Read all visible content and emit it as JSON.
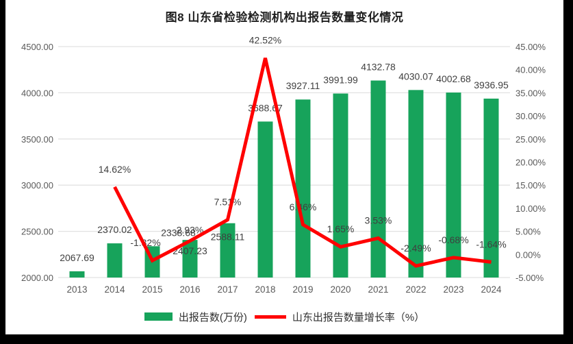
{
  "title": "图8  山东省检验检测机构出报告数量变化情况",
  "legend": {
    "bar_label": "出报告数(万份)",
    "line_label": "山东出报告数量增长率（%）"
  },
  "colors": {
    "bar": "#17A35B",
    "line": "#FF0000",
    "grid": "#E2E2E2",
    "axis_text": "#595959",
    "label_text": "#3F3F3F",
    "title_text": "#1F1F1F",
    "frame": "#000000",
    "page": "#FFFFFF"
  },
  "chart_data": {
    "type": "bar+line",
    "title": "图8  山东省检验检测机构出报告数量变化情况",
    "categories": [
      "2013",
      "2014",
      "2015",
      "2016",
      "2017",
      "2018",
      "2019",
      "2020",
      "2021",
      "2022",
      "2023",
      "2024"
    ],
    "series": [
      {
        "name": "出报告数(万份)",
        "type": "bar",
        "axis": "left",
        "color": "#17A35B",
        "values": [
          2067.69,
          2370.02,
          2338.68,
          2407.23,
          2588.11,
          3688.67,
          3927.11,
          3991.99,
          4132.78,
          4030.07,
          4002.68,
          3936.95
        ],
        "value_labels": [
          "2067.69",
          "2370.02",
          "2338.68",
          "2407.23",
          "2588.11",
          "3688.67",
          "3927.11",
          "3991.99",
          "4132.78",
          "4030.07",
          "4002.68",
          "3936.95"
        ]
      },
      {
        "name": "山东出报告数量增长率（%）",
        "type": "line",
        "axis": "right",
        "color": "#FF0000",
        "values": [
          null,
          14.62,
          -1.32,
          2.93,
          7.51,
          42.52,
          6.46,
          1.65,
          3.53,
          -2.49,
          -0.68,
          -1.64
        ],
        "value_labels": [
          null,
          "14.62%",
          "-1.32%",
          "2.93%",
          "7.51%",
          "42.52%",
          "6.46%",
          "1.65%",
          "3.53%",
          "-2.49%",
          "-0.68%",
          "-1.64%"
        ]
      }
    ],
    "left_axis": {
      "min": 2000,
      "max": 4500,
      "step": 500,
      "tick_labels": [
        "2000.00",
        "2500.00",
        "3000.00",
        "3500.00",
        "4000.00",
        "4500.00"
      ]
    },
    "right_axis": {
      "min": -5,
      "max": 45,
      "step": 5,
      "tick_labels": [
        "-5.00%",
        "0.00%",
        "5.00%",
        "10.00%",
        "15.00%",
        "20.00%",
        "25.00%",
        "30.00%",
        "35.00%",
        "40.00%",
        "45.00%"
      ]
    },
    "grid": true,
    "legend_position": "bottom"
  }
}
